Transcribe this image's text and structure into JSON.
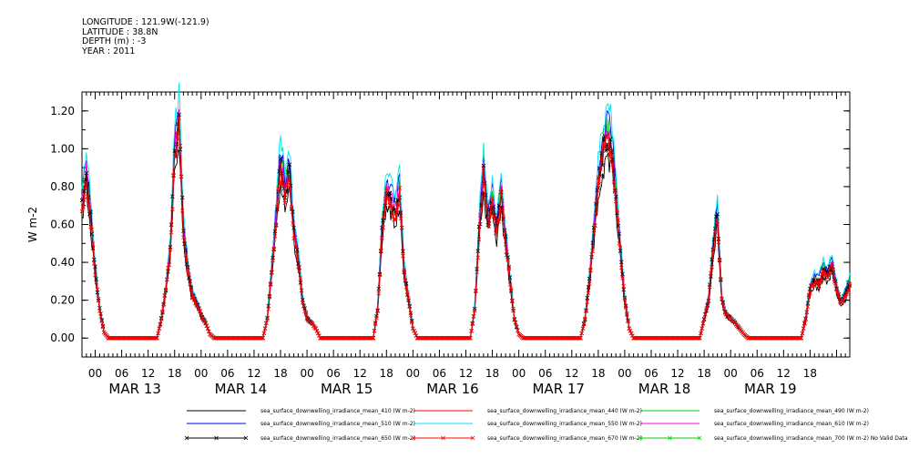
{
  "header": {
    "longitude": "LONGITUDE : 121.9W(-121.9)",
    "latitude": "LATITUDE : 38.8N",
    "depth": "DEPTH (m) : -3",
    "year": "YEAR : 2011"
  },
  "chart_data": {
    "type": "line",
    "xlabel": "",
    "ylabel": "W m-2",
    "ylim": [
      -0.1,
      1.3
    ],
    "yticks": [
      0.0,
      0.2,
      0.4,
      0.6,
      0.8,
      1.0,
      1.2
    ],
    "ytick_labels": [
      "0.00",
      "0.20",
      "0.40",
      "0.60",
      "0.80",
      "1.00",
      "1.20"
    ],
    "xlim_hours": [
      -3,
      171
    ],
    "xtick_labels": [
      "00",
      "06",
      "12",
      "18",
      "00",
      "06",
      "12",
      "18",
      "00",
      "06",
      "12",
      "18",
      "00",
      "06",
      "12",
      "18",
      "00",
      "06",
      "12",
      "18",
      "00",
      "06",
      "12",
      "18",
      "00",
      "06",
      "12",
      "18"
    ],
    "date_labels": [
      "MAR 13",
      "MAR 14",
      "MAR 15",
      "MAR 16",
      "MAR 17",
      "MAR 18",
      "MAR 19"
    ],
    "grid": false,
    "legend_position": "bottom",
    "day_peaks": [
      {
        "day": "MAR 13",
        "x_hours": [
          -3,
          -2,
          -1,
          0,
          1,
          2,
          3,
          14,
          15,
          16,
          17,
          18,
          19,
          20,
          21,
          22,
          23,
          24,
          25,
          26,
          27
        ],
        "y": [
          0.7,
          0.85,
          0.62,
          0.35,
          0.15,
          0.03,
          0.0,
          0.0,
          0.1,
          0.25,
          0.45,
          0.95,
          1.1,
          0.55,
          0.35,
          0.22,
          0.18,
          0.12,
          0.08,
          0.02,
          0.0
        ]
      },
      {
        "day": "MAR 14",
        "x_hours": [
          38,
          39,
          40,
          41,
          42,
          43,
          44,
          45,
          46,
          47,
          48,
          49,
          50,
          51
        ],
        "y": [
          0.0,
          0.1,
          0.35,
          0.6,
          0.9,
          0.75,
          0.85,
          0.55,
          0.4,
          0.2,
          0.1,
          0.08,
          0.05,
          0.0
        ]
      },
      {
        "day": "MAR 15",
        "x_hours": [
          63,
          64,
          65,
          66,
          67,
          68,
          69,
          70,
          71,
          72,
          73
        ],
        "y": [
          0.0,
          0.15,
          0.55,
          0.75,
          0.7,
          0.65,
          0.75,
          0.35,
          0.2,
          0.05,
          0.0
        ]
      },
      {
        "day": "MAR 16",
        "x_hours": [
          85,
          86,
          87,
          88,
          89,
          90,
          91,
          92,
          93,
          94,
          95,
          96,
          97
        ],
        "y": [
          0.0,
          0.15,
          0.55,
          0.85,
          0.6,
          0.7,
          0.55,
          0.75,
          0.5,
          0.3,
          0.1,
          0.02,
          0.0
        ]
      },
      {
        "day": "MAR 17",
        "x_hours": [
          110,
          111,
          112,
          113,
          114,
          115,
          116,
          117,
          118,
          119,
          120,
          121,
          122
        ],
        "y": [
          0.0,
          0.1,
          0.3,
          0.55,
          0.8,
          0.95,
          1.05,
          0.98,
          0.75,
          0.45,
          0.2,
          0.05,
          0.0
        ]
      },
      {
        "day": "MAR 18",
        "x_hours": [
          137,
          138,
          139,
          140,
          141,
          142,
          143,
          144,
          145,
          146,
          147,
          148
        ],
        "y": [
          0.0,
          0.1,
          0.2,
          0.45,
          0.65,
          0.2,
          0.12,
          0.1,
          0.08,
          0.05,
          0.02,
          0.0
        ]
      },
      {
        "day": "MAR 19",
        "x_hours": [
          160,
          161,
          162,
          163,
          164,
          165,
          166,
          167,
          168,
          169,
          170,
          171
        ],
        "y": [
          0.0,
          0.1,
          0.25,
          0.3,
          0.28,
          0.35,
          0.32,
          0.38,
          0.25,
          0.18,
          0.22,
          0.28
        ]
      }
    ],
    "series": [
      {
        "name": "sea_surface_downwelling_irradiance_mean_410 (W m-2)",
        "color": "#000000",
        "scale": 0.92,
        "marker": "none"
      },
      {
        "name": "sea_surface_downwelling_irradiance_mean_440 (W m-2)",
        "color": "#ff0000",
        "scale": 1.0,
        "marker": "none"
      },
      {
        "name": "sea_surface_downwelling_irradiance_mean_490 (W m-2)",
        "color": "#00cc00",
        "scale": 1.08,
        "marker": "none"
      },
      {
        "name": "sea_surface_downwelling_irradiance_mean_510 (W m-2)",
        "color": "#0000ff",
        "scale": 1.12,
        "marker": "none"
      },
      {
        "name": "sea_surface_downwelling_irradiance_mean_550 (W m-2)",
        "color": "#00e5ee",
        "scale": 1.18,
        "marker": "none"
      },
      {
        "name": "sea_surface_downwelling_irradiance_mean_610 (W m-2)",
        "color": "#ff00ff",
        "scale": 1.05,
        "marker": "none"
      },
      {
        "name": "sea_surface_downwelling_irradiance_mean_650 (W m-2)",
        "color": "#000000",
        "scale": 1.02,
        "marker": "x"
      },
      {
        "name": "sea_surface_downwelling_irradiance_mean_670 (W m-2)",
        "color": "#ff0000",
        "scale": 1.0,
        "marker": "x"
      },
      {
        "name": "sea_surface_downwelling_irradiance_mean_700 (W m-2) No Valid Data",
        "color": "#00cc00",
        "scale": 0,
        "marker": "x"
      }
    ]
  }
}
